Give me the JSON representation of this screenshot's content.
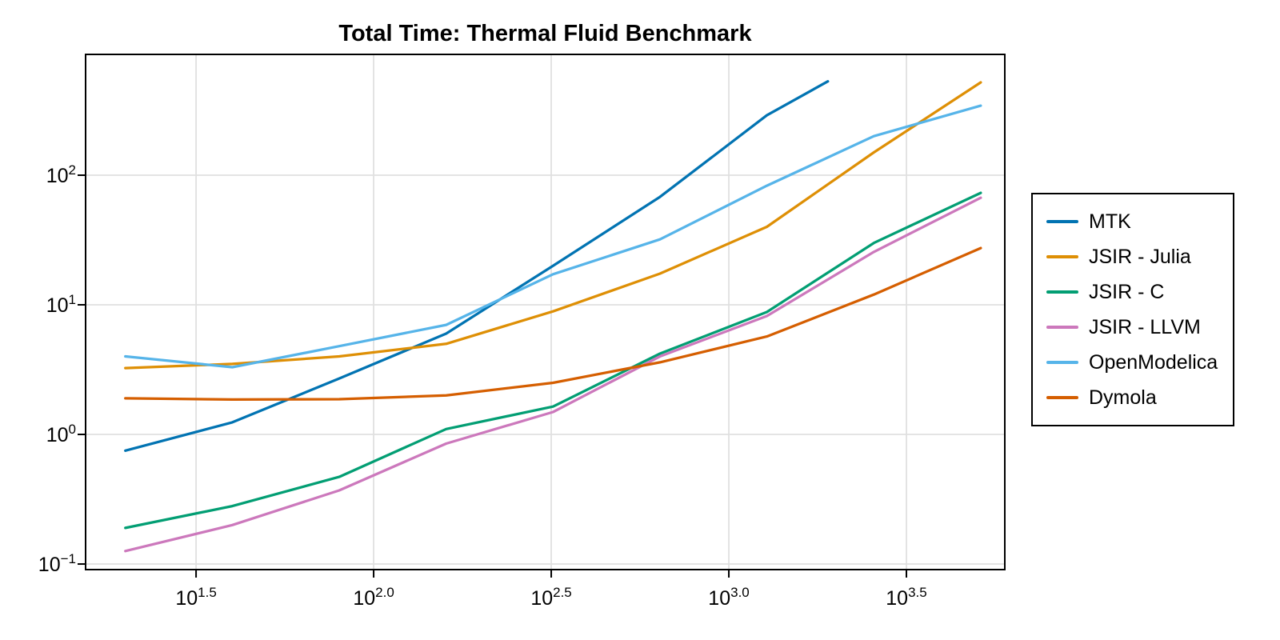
{
  "chart_data": {
    "type": "line",
    "title": "Total Time: Thermal Fluid Benchmark",
    "xlabel": "",
    "ylabel": "",
    "grid": true,
    "legend_position": "right-outside",
    "x_axis": {
      "scale": "log10",
      "exp_min": 1.189,
      "exp_max": 3.777,
      "tick_base": "10",
      "ticks": [
        {
          "exp_label": "1.5",
          "value": 31.623
        },
        {
          "exp_label": "2.0",
          "value": 100
        },
        {
          "exp_label": "2.5",
          "value": 316.23
        },
        {
          "exp_label": "3.0",
          "value": 1000
        },
        {
          "exp_label": "3.5",
          "value": 3162.3
        }
      ]
    },
    "y_axis": {
      "scale": "log10",
      "exp_min": -1.043,
      "exp_max": 2.932,
      "tick_base": "10",
      "ticks": [
        {
          "exp_label": "−1",
          "value": 0.1
        },
        {
          "exp_label": "0",
          "value": 1
        },
        {
          "exp_label": "1",
          "value": 10
        },
        {
          "exp_label": "2",
          "value": 100
        }
      ]
    },
    "series": [
      {
        "name": "MTK",
        "color": "#0173B2",
        "x": [
          20,
          40,
          80,
          160,
          320,
          640,
          1280,
          1900
        ],
        "y": [
          0.75,
          1.24,
          2.7,
          6.0,
          20,
          68,
          290,
          530
        ]
      },
      {
        "name": "JSIR - Julia",
        "color": "#DE8F05",
        "x": [
          20,
          40,
          80,
          160,
          320,
          640,
          1280,
          2560,
          5120
        ],
        "y": [
          3.25,
          3.5,
          4.0,
          5.0,
          8.9,
          17.4,
          40,
          150,
          520
        ]
      },
      {
        "name": "JSIR - C",
        "color": "#029E73",
        "x": [
          20,
          40,
          80,
          160,
          320,
          640,
          1280,
          2560,
          5120
        ],
        "y": [
          0.19,
          0.28,
          0.47,
          1.1,
          1.64,
          4.2,
          8.8,
          30,
          73
        ]
      },
      {
        "name": "JSIR - LLVM",
        "color": "#CC78BC",
        "x": [
          20,
          40,
          80,
          160,
          320,
          640,
          1280,
          2560,
          5120
        ],
        "y": [
          0.126,
          0.2,
          0.37,
          0.85,
          1.49,
          4.0,
          8.2,
          25.6,
          67
        ]
      },
      {
        "name": "OpenModelica",
        "color": "#56B4E9",
        "x": [
          20,
          40,
          80,
          160,
          320,
          640,
          1280,
          2560,
          5120
        ],
        "y": [
          4.0,
          3.3,
          4.8,
          7.0,
          17.2,
          32,
          83,
          200,
          344
        ]
      },
      {
        "name": "Dymola",
        "color": "#D55E00",
        "x": [
          20,
          40,
          80,
          160,
          320,
          640,
          1280,
          2560,
          5120
        ],
        "y": [
          1.9,
          1.86,
          1.87,
          2.0,
          2.5,
          3.6,
          5.7,
          12,
          27.4
        ]
      }
    ],
    "style": {
      "grid_color": "#e0e0e0",
      "frame_color": "#000000",
      "background": "#ffffff",
      "line_width": 3.25
    }
  }
}
